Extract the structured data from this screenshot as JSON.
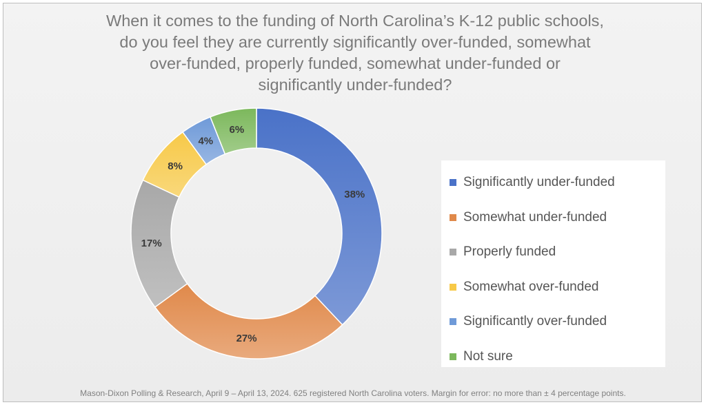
{
  "title_lines": [
    "When it comes to the funding of North Carolina’s K-12 public schools,",
    "do you feel they are currently significantly over-funded, somewhat",
    "over-funded, properly funded, somewhat under-funded or",
    "significantly under-funded?"
  ],
  "chart_data": {
    "type": "pie",
    "subtype": "donut",
    "title": "When it comes to the funding of North Carolina’s K-12 public schools, do you feel they are currently significantly over-funded, somewhat over-funded, properly funded, somewhat under-funded or significantly under-funded?",
    "categories": [
      "Significantly under-funded",
      "Somewhat under-funded",
      "Properly funded",
      "Somewhat over-funded",
      "Significantly over-funded",
      "Not sure"
    ],
    "values": [
      38,
      27,
      17,
      8,
      4,
      6
    ],
    "data_labels": [
      "38%",
      "27%",
      "17%",
      "8%",
      "4%",
      "6%"
    ],
    "colors": [
      "#4a72c8",
      "#e0894a",
      "#a8a8a8",
      "#f7c948",
      "#6f9ad8",
      "#7cb85c"
    ],
    "legend_position": "right"
  },
  "legend": [
    {
      "label": "Significantly under-funded",
      "color": "#4a72c8"
    },
    {
      "label": "Somewhat under-funded",
      "color": "#e0894a"
    },
    {
      "label": "Properly funded",
      "color": "#a8a8a8"
    },
    {
      "label": "Somewhat over-funded",
      "color": "#f7c948"
    },
    {
      "label": "Significantly over-funded",
      "color": "#6f9ad8"
    },
    {
      "label": "Not sure",
      "color": "#7cb85c"
    }
  ],
  "footnote": "Mason-Dixon Polling & Research, April 9 – April 13, 2024. 625 registered North Carolina voters. Margin for error: no more than ± 4 percentage points."
}
